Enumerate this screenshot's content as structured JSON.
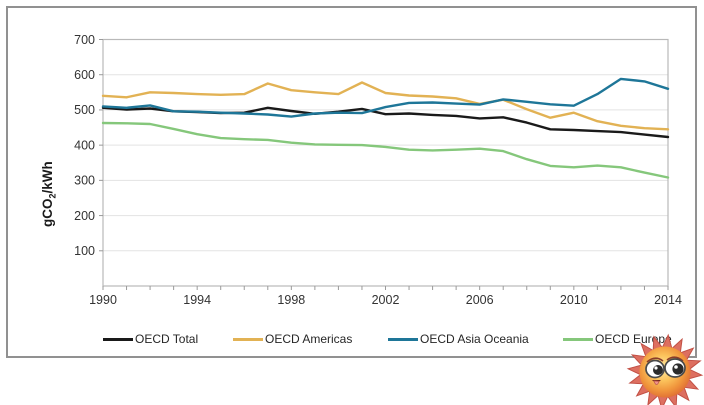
{
  "figure": {
    "title": "",
    "y_axis_title": "gCO2/kWh"
  },
  "chart_data": {
    "type": "line",
    "x": [
      1990,
      1991,
      1992,
      1993,
      1994,
      1995,
      1996,
      1997,
      1998,
      1999,
      2000,
      2001,
      2002,
      2003,
      2004,
      2005,
      2006,
      2007,
      2008,
      2009,
      2010,
      2011,
      2012,
      2013,
      2014
    ],
    "series": [
      {
        "name": "OECD Total",
        "color": "#1a1a1a",
        "values": [
          506,
          501,
          504,
          496,
          494,
          491,
          492,
          506,
          497,
          489,
          495,
          503,
          488,
          490,
          486,
          483,
          476,
          479,
          464,
          445,
          443,
          440,
          437,
          430,
          423
        ]
      },
      {
        "name": "OECD Americas",
        "color": "#e2b254",
        "values": [
          540,
          536,
          550,
          548,
          545,
          543,
          545,
          575,
          556,
          550,
          545,
          578,
          548,
          541,
          538,
          533,
          517,
          529,
          502,
          478,
          492,
          468,
          455,
          448,
          445
        ]
      },
      {
        "name": "OECD Asia Oceania",
        "color": "#1e7698",
        "values": [
          510,
          506,
          513,
          496,
          495,
          492,
          490,
          487,
          481,
          490,
          492,
          491,
          508,
          520,
          521,
          518,
          515,
          530,
          523,
          516,
          512,
          545,
          588,
          581,
          560
        ]
      },
      {
        "name": "OECD Europe",
        "color": "#85c77b",
        "values": [
          463,
          462,
          460,
          446,
          431,
          420,
          417,
          415,
          407,
          402,
          401,
          400,
          395,
          387,
          385,
          387,
          390,
          383,
          360,
          341,
          337,
          342,
          337,
          322,
          308
        ]
      }
    ],
    "ylabel": "gCO2/kWh",
    "ylabel_parts": {
      "pre": "gCO",
      "sub": "2",
      "post": "/kWh"
    },
    "xlabel": "",
    "ylim": [
      0,
      700
    ],
    "yticks": [
      100,
      200,
      300,
      400,
      500,
      600,
      700
    ],
    "xticks": [
      1990,
      1994,
      1998,
      2002,
      2006,
      2010,
      2014
    ],
    "grid": true,
    "legend_position": "bottom"
  },
  "colors": {
    "grid": "#e3e3e3",
    "plot_border": "#b9b9b9",
    "tick": "#9a9a9a",
    "outer_border": "#919191",
    "sticker_ray": "#dd6f60",
    "sticker_ray_edge": "#c25045"
  },
  "decorations": {
    "sticker": "sun-face-sticker"
  }
}
